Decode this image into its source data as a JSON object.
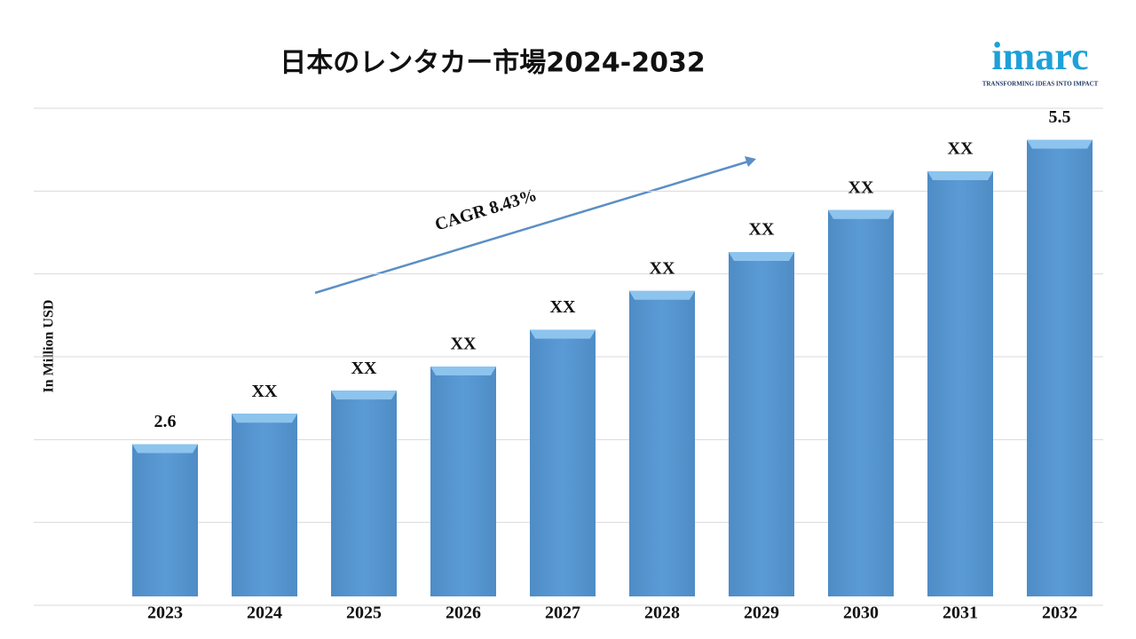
{
  "chart_data": {
    "type": "bar",
    "title": "日本のレンタカー市場2024-2032",
    "y_label": "In Million USD",
    "annotation": "CAGR 8.43%",
    "categories": [
      "2023",
      "2024",
      "2025",
      "2026",
      "2027",
      "2028",
      "2029",
      "2030",
      "2031",
      "2032"
    ],
    "values": [
      2.6,
      2.89,
      3.11,
      3.34,
      3.69,
      4.06,
      4.43,
      4.83,
      5.2,
      5.5
    ],
    "value_labels": [
      "2.6",
      "XX",
      "XX",
      "XX",
      "XX",
      "XX",
      "XX",
      "XX",
      "XX",
      "5.5"
    ],
    "color": "#5b9bd5",
    "ylim": [
      1.15,
      5.8
    ],
    "grid": true
  },
  "logo": {
    "name": "imarc",
    "tagline": "TRANSFORMING IDEAS INTO IMPACT"
  }
}
